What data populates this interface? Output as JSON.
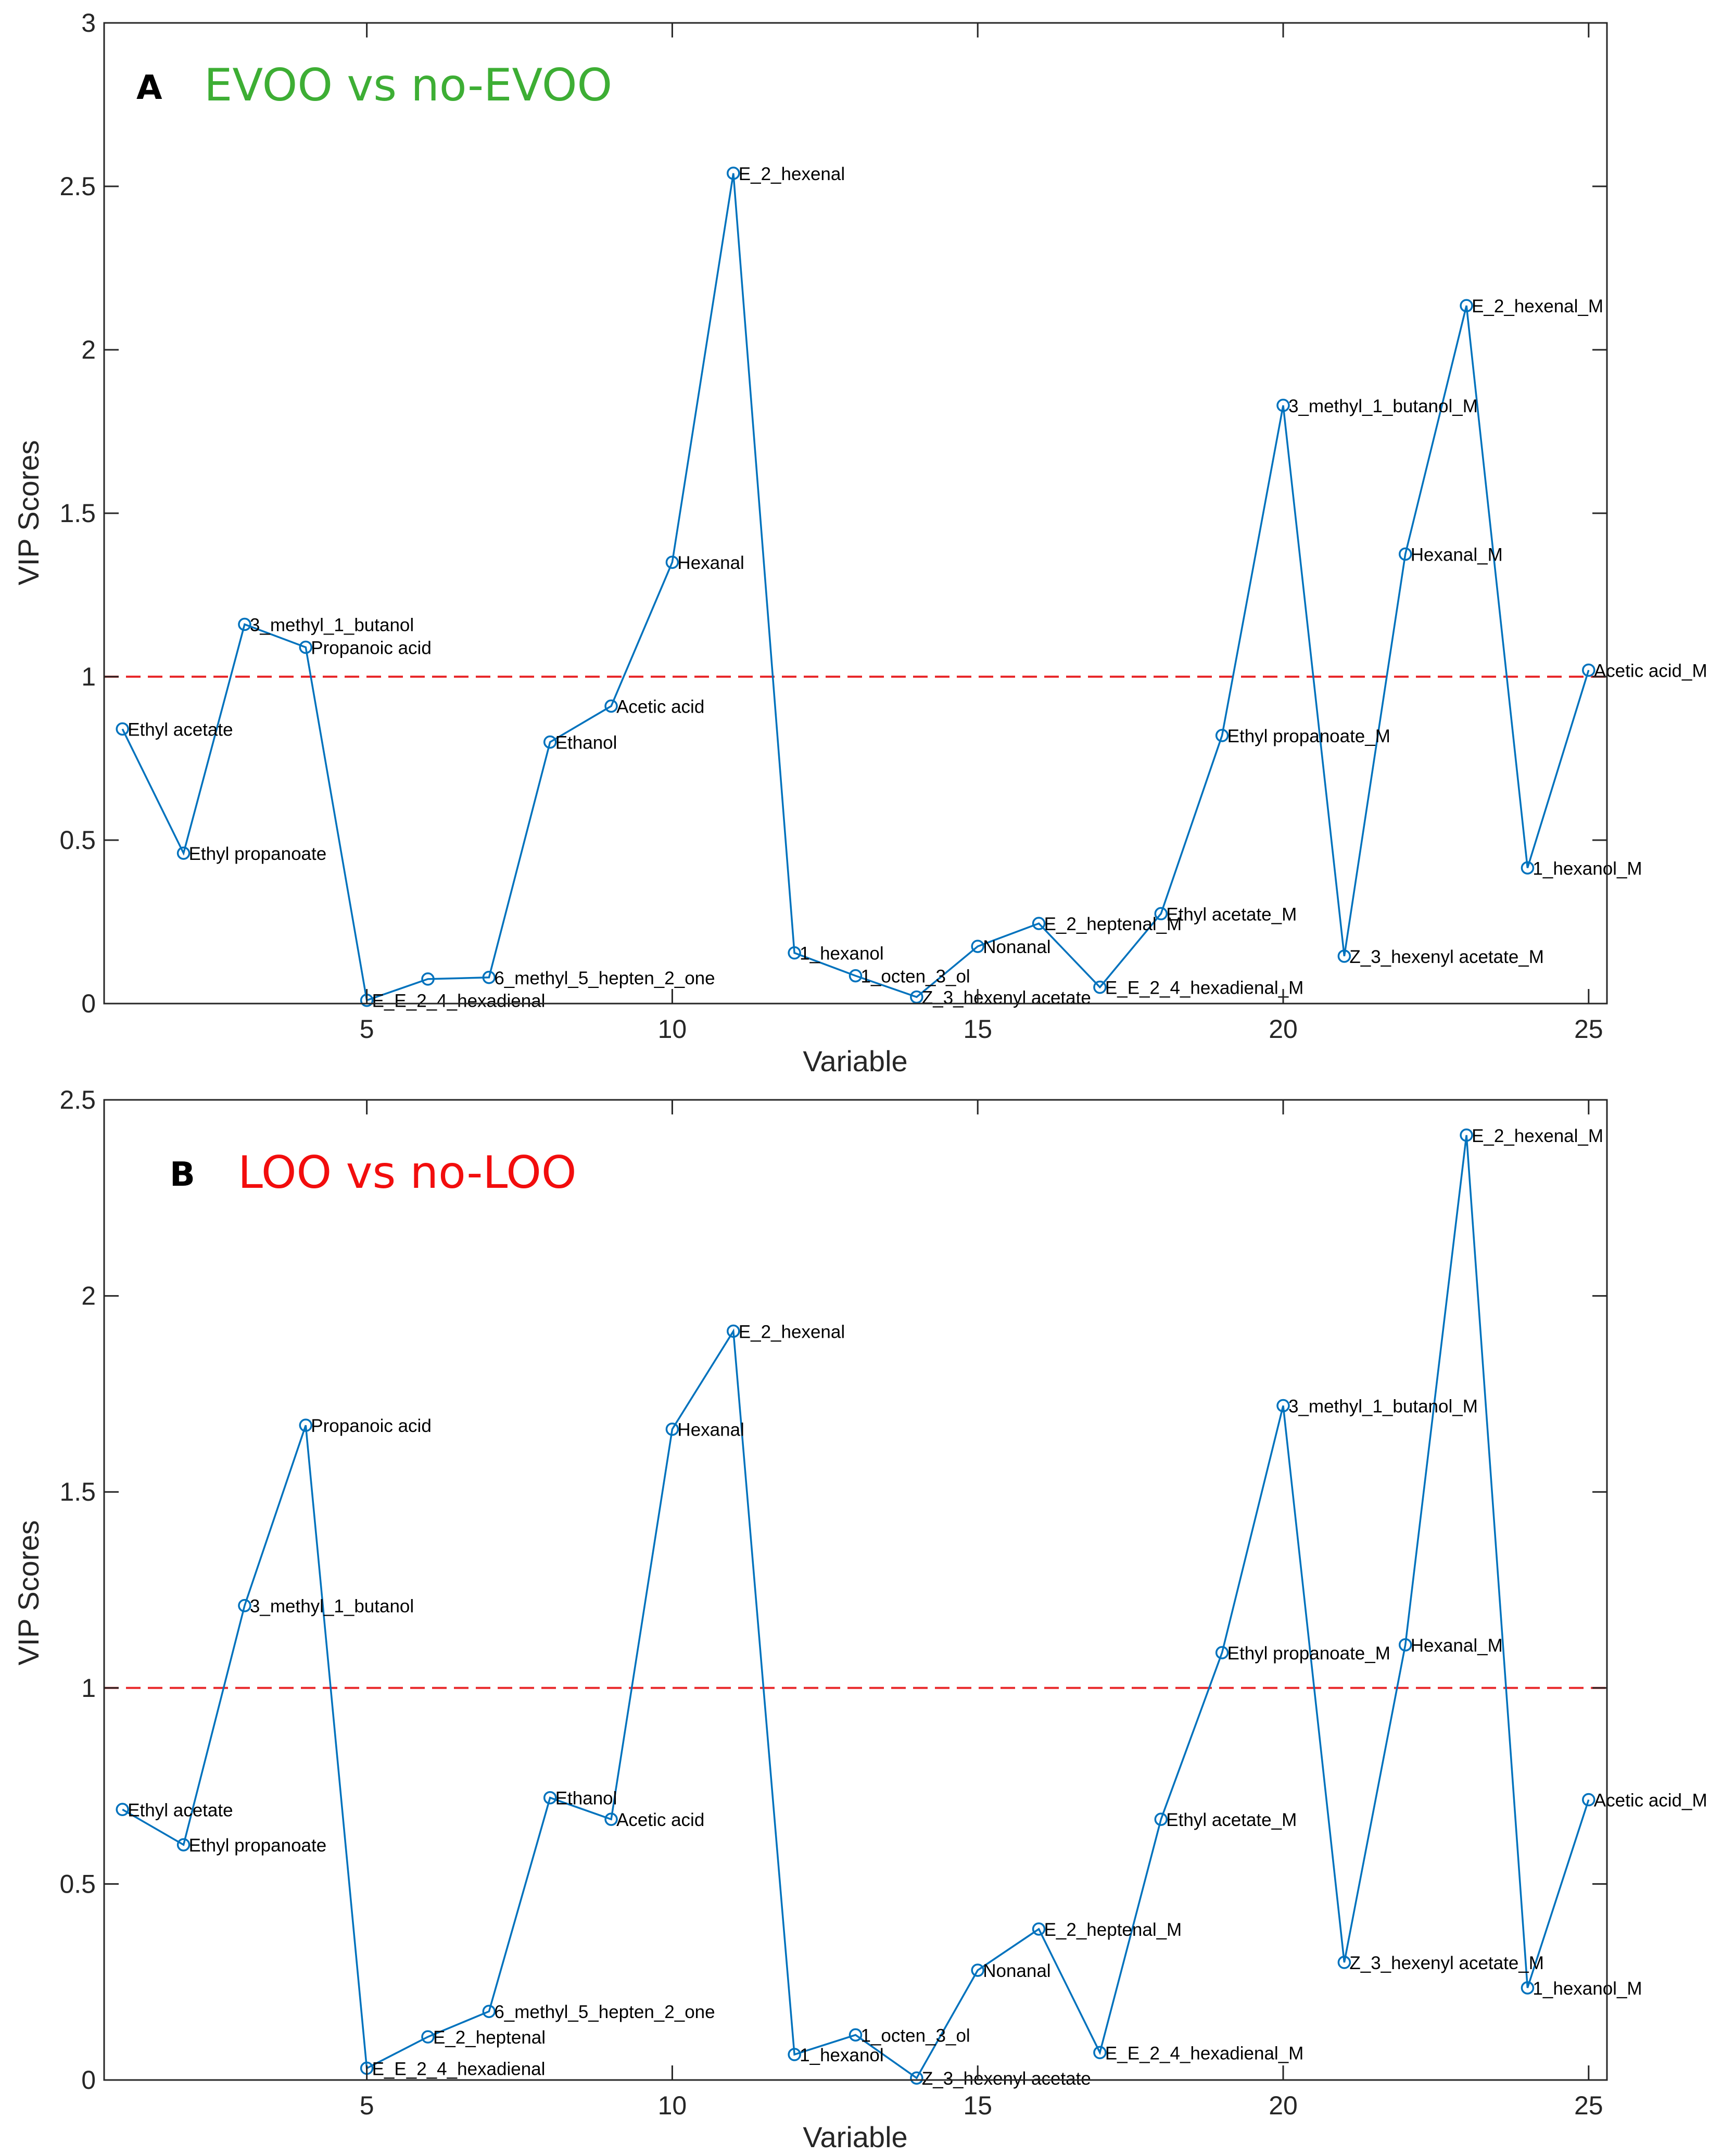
{
  "colors": {
    "series": "#0072BD",
    "threshold": "#E8292B",
    "axis": "#262626",
    "title_a": "#3DAE34",
    "title_b": "#F20D0D"
  },
  "chart_data": [
    {
      "type": "line",
      "panel": "A",
      "title": "EVOO vs no-EVOO",
      "xlabel": "Variable",
      "ylabel": "VIP Scores",
      "xlim": [
        0.7,
        25.3
      ],
      "ylim": [
        0,
        3
      ],
      "xticks": [
        5,
        10,
        15,
        20,
        25
      ],
      "yticks": [
        0,
        0.5,
        1,
        1.5,
        2,
        2.5,
        3
      ],
      "ytick_labels": [
        "0",
        "0.5",
        "1",
        "1.5",
        "2",
        "2.5",
        "3"
      ],
      "threshold": 1,
      "x": [
        1,
        2,
        3,
        4,
        5,
        6,
        7,
        8,
        9,
        10,
        11,
        12,
        13,
        14,
        15,
        16,
        17,
        18,
        19,
        20,
        21,
        22,
        23,
        24,
        25
      ],
      "values": [
        0.84,
        0.46,
        1.16,
        1.09,
        0.01,
        0.075,
        0.08,
        0.8,
        0.91,
        1.35,
        2.54,
        0.155,
        0.085,
        0.02,
        0.175,
        0.245,
        0.05,
        0.275,
        0.82,
        1.83,
        0.145,
        1.375,
        2.135,
        0.415,
        1.02
      ],
      "labels": [
        "Ethyl acetate",
        "Ethyl propanoate",
        "3_methyl_1_butanol",
        "Propanoic acid",
        "E_E_2_4_hexadienal",
        "",
        "6_methyl_5_hepten_2_one",
        "Ethanol",
        "Acetic acid",
        "Hexanal",
        "E_2_hexenal",
        "1_hexanol",
        "1_octen_3_ol",
        "Z_3_hexenyl acetate",
        "Nonanal",
        "E_2_heptenal_M",
        "E_E_2_4_hexadienal_M",
        "Ethyl acetate_M",
        "Ethyl propanoate_M",
        "3_methyl_1_butanol_M",
        "Z_3_hexenyl acetate_M",
        "Hexanal_M",
        "E_2_hexenal_M",
        "1_hexanol_M",
        "Acetic acid_M"
      ]
    },
    {
      "type": "line",
      "panel": "B",
      "title": "LOO vs no-LOO",
      "xlabel": "Variable",
      "ylabel": "VIP Scores",
      "xlim": [
        0.7,
        25.3
      ],
      "ylim": [
        0,
        2.5
      ],
      "xticks": [
        5,
        10,
        15,
        20,
        25
      ],
      "yticks": [
        0,
        0.5,
        1,
        1.5,
        2,
        2.5
      ],
      "ytick_labels": [
        "0",
        "0.5",
        "1",
        "1.5",
        "2",
        "2.5"
      ],
      "threshold": 1,
      "x": [
        1,
        2,
        3,
        4,
        5,
        6,
        7,
        8,
        9,
        10,
        11,
        12,
        13,
        14,
        15,
        16,
        17,
        18,
        19,
        20,
        21,
        22,
        23,
        24,
        25
      ],
      "values": [
        0.69,
        0.6,
        1.21,
        1.67,
        0.03,
        0.11,
        0.175,
        0.72,
        0.665,
        1.66,
        1.91,
        0.065,
        0.115,
        0.005,
        0.28,
        0.385,
        0.07,
        0.665,
        1.09,
        1.72,
        0.3,
        1.11,
        2.41,
        0.235,
        0.715
      ],
      "labels": [
        "Ethyl acetate",
        "Ethyl propanoate",
        "3_methyl_1_butanol",
        "Propanoic acid",
        "E_E_2_4_hexadienal",
        "E_2_heptenal",
        "6_methyl_5_hepten_2_one",
        "Ethanol",
        "Acetic acid",
        "Hexanal",
        "E_2_hexenal",
        "1_hexanol",
        "1_octen_3_ol",
        "Z_3_hexenyl acetate",
        "Nonanal",
        "E_2_heptenal_M",
        "E_E_2_4_hexadienal_M",
        "Ethyl acetate_M",
        "Ethyl propanoate_M",
        "3_methyl_1_butanol_M",
        "Z_3_hexenyl acetate_M",
        "Hexanal_M",
        "E_2_hexenal_M",
        "1_hexanol_M",
        "Acetic acid_M"
      ]
    }
  ]
}
